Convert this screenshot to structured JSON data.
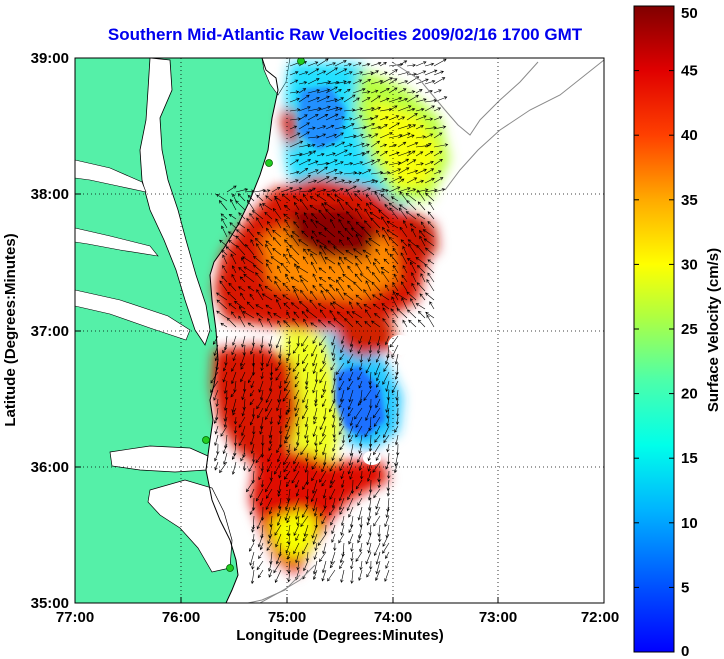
{
  "chart_data": {
    "type": "heatmap",
    "title": "Southern Mid-Atlantic Raw Velocities 2009/02/16 1700 GMT",
    "xlabel": "Longitude (Degrees:Minutes)",
    "ylabel": "Latitude (Degrees:Minutes)",
    "x_ticks": [
      "77:00",
      "76:00",
      "75:00",
      "74:00",
      "73:00",
      "72:00"
    ],
    "y_ticks": [
      "39:00",
      "38:00",
      "37:00",
      "36:00",
      "35:00"
    ],
    "x_range_deg_west": [
      77,
      72
    ],
    "y_range_deg_north": [
      35,
      39
    ],
    "colorbar": {
      "label": "Surface Velocity (cm/s)",
      "range": [
        0,
        50
      ],
      "ticks": [
        "0",
        "5",
        "10",
        "15",
        "20",
        "25",
        "30",
        "35",
        "40",
        "45",
        "50"
      ],
      "colormap": "jet"
    },
    "grid": "dotted",
    "colors": {
      "land": "#55f0a8",
      "water": "#ffffff",
      "title": "#0000ee",
      "coast": "#000000",
      "bathymetry": "#888888",
      "station": "#22cc22"
    }
  }
}
